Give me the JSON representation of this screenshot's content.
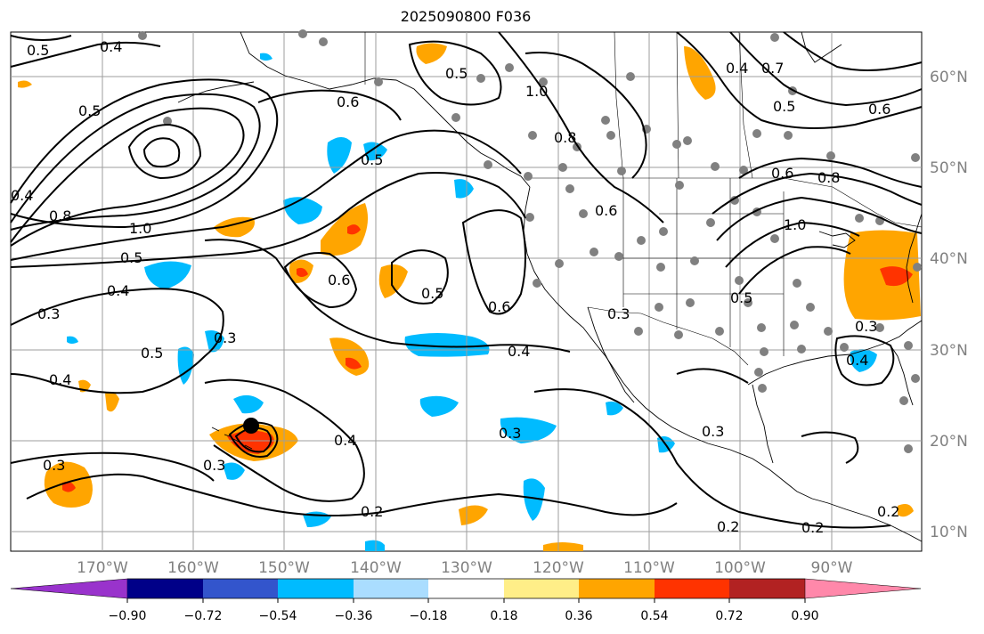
{
  "title": "2025090800 F036",
  "map": {
    "lon_labels": [
      "170°W",
      "160°W",
      "150°W",
      "140°W",
      "130°W",
      "120°W",
      "110°W",
      "100°W",
      "90°W"
    ],
    "lat_labels": [
      "60°N",
      "50°N",
      "40°N",
      "30°N",
      "20°N",
      "10°N"
    ],
    "contour_labels": [
      "0.5",
      "0.4",
      "0.5",
      "1.0",
      "0.6",
      "0.4",
      "0.8",
      "1.0",
      "0.5",
      "0.4",
      "0.3",
      "0.5",
      "0.4",
      "0.3",
      "0.6",
      "0.5",
      "0.6",
      "0.4",
      "0.3",
      "0.2",
      "0.3",
      "0.2",
      "0.2",
      "0.3",
      "0.5",
      "0.6",
      "0.8",
      "0.4",
      "0.7",
      "0.5",
      "0.6",
      "0.8",
      "0.6",
      "1.0",
      "0.5",
      "0.4",
      "0.3",
      "0.2",
      "0.5",
      "0.3",
      "0.4",
      "0.3"
    ]
  },
  "colorbar": {
    "tick_labels": [
      "−0.90",
      "−0.72",
      "−0.54",
      "−0.36",
      "−0.18",
      "0.18",
      "0.36",
      "0.54",
      "0.72",
      "0.90"
    ],
    "colors": [
      "#9933cc",
      "#000088",
      "#3355cc",
      "#00bbff",
      "#aaddff",
      "#ffffff",
      "#ffee88",
      "#ffa500",
      "#ff3300",
      "#b22222",
      "#ff88aa"
    ]
  },
  "colors": {
    "grid": "#9e9e9e",
    "land_line": "#000000",
    "orange": "#ffa500",
    "red": "#ff3300",
    "cyan": "#00bbff",
    "station": "#808080"
  }
}
